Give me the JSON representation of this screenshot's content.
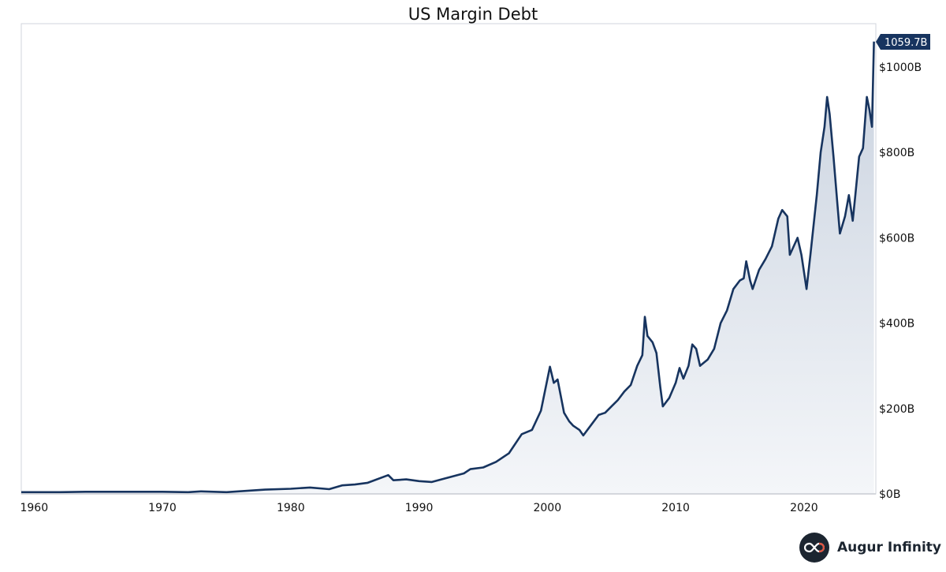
{
  "chart_data": {
    "type": "area",
    "title": "US Margin Debt",
    "xlabel": "",
    "ylabel": "",
    "x_ticks": [
      "1960",
      "1970",
      "1980",
      "1990",
      "2000",
      "2010",
      "2020"
    ],
    "y_ticks": [
      "$0B",
      "$200B",
      "$400B",
      "$600B",
      "$800B",
      "$1000B"
    ],
    "y_tick_values": [
      0,
      200,
      400,
      600,
      800,
      1000
    ],
    "xlim": [
      1959,
      2025.6
    ],
    "ylim": [
      0,
      1100
    ],
    "grid": false,
    "legend": "none",
    "last_value_label": "1059.7B",
    "series": [
      {
        "values_unit": "billions USD",
        "points": [
          [
            1959.0,
            4
          ],
          [
            1962.0,
            4
          ],
          [
            1964.0,
            5
          ],
          [
            1968.0,
            5
          ],
          [
            1970.0,
            5
          ],
          [
            1972.0,
            4
          ],
          [
            1973.0,
            6
          ],
          [
            1974.0,
            5
          ],
          [
            1975.0,
            4
          ],
          [
            1978.0,
            10
          ],
          [
            1980.0,
            12
          ],
          [
            1981.5,
            15
          ],
          [
            1983.0,
            11
          ],
          [
            1984.0,
            20
          ],
          [
            1985.0,
            22
          ],
          [
            1986.0,
            26
          ],
          [
            1987.6,
            44
          ],
          [
            1988.0,
            32
          ],
          [
            1989.0,
            34
          ],
          [
            1990.0,
            30
          ],
          [
            1991.0,
            28
          ],
          [
            1992.0,
            36
          ],
          [
            1993.5,
            48
          ],
          [
            1994.0,
            58
          ],
          [
            1995.0,
            62
          ],
          [
            1996.0,
            75
          ],
          [
            1997.0,
            95
          ],
          [
            1998.0,
            140
          ],
          [
            1998.8,
            150
          ],
          [
            1999.5,
            195
          ],
          [
            2000.2,
            298
          ],
          [
            2000.5,
            260
          ],
          [
            2000.8,
            268
          ],
          [
            2001.3,
            190
          ],
          [
            2001.7,
            170
          ],
          [
            2002.0,
            160
          ],
          [
            2002.5,
            150
          ],
          [
            2002.8,
            137
          ],
          [
            2003.5,
            165
          ],
          [
            2004.0,
            185
          ],
          [
            2004.5,
            190
          ],
          [
            2005.0,
            205
          ],
          [
            2005.5,
            220
          ],
          [
            2006.0,
            240
          ],
          [
            2006.5,
            255
          ],
          [
            2007.0,
            300
          ],
          [
            2007.4,
            325
          ],
          [
            2007.6,
            415
          ],
          [
            2007.8,
            370
          ],
          [
            2008.2,
            355
          ],
          [
            2008.5,
            330
          ],
          [
            2008.8,
            250
          ],
          [
            2009.0,
            205
          ],
          [
            2009.5,
            225
          ],
          [
            2010.0,
            260
          ],
          [
            2010.3,
            295
          ],
          [
            2010.6,
            270
          ],
          [
            2011.0,
            300
          ],
          [
            2011.3,
            350
          ],
          [
            2011.6,
            340
          ],
          [
            2011.9,
            300
          ],
          [
            2012.5,
            315
          ],
          [
            2013.0,
            340
          ],
          [
            2013.5,
            400
          ],
          [
            2014.0,
            430
          ],
          [
            2014.5,
            480
          ],
          [
            2015.0,
            500
          ],
          [
            2015.3,
            505
          ],
          [
            2015.5,
            545
          ],
          [
            2015.8,
            500
          ],
          [
            2016.0,
            480
          ],
          [
            2016.5,
            525
          ],
          [
            2017.0,
            550
          ],
          [
            2017.5,
            580
          ],
          [
            2018.0,
            645
          ],
          [
            2018.3,
            665
          ],
          [
            2018.7,
            650
          ],
          [
            2018.9,
            560
          ],
          [
            2019.5,
            600
          ],
          [
            2019.8,
            560
          ],
          [
            2020.2,
            480
          ],
          [
            2020.5,
            560
          ],
          [
            2021.0,
            700
          ],
          [
            2021.3,
            800
          ],
          [
            2021.6,
            860
          ],
          [
            2021.8,
            930
          ],
          [
            2022.0,
            890
          ],
          [
            2022.3,
            790
          ],
          [
            2022.6,
            680
          ],
          [
            2022.8,
            610
          ],
          [
            2023.2,
            650
          ],
          [
            2023.5,
            700
          ],
          [
            2023.8,
            640
          ],
          [
            2024.0,
            700
          ],
          [
            2024.3,
            790
          ],
          [
            2024.6,
            810
          ],
          [
            2024.9,
            930
          ],
          [
            2025.1,
            900
          ],
          [
            2025.3,
            860
          ],
          [
            2025.45,
            1059.7
          ]
        ]
      }
    ],
    "colors": {
      "line": "#17345f",
      "area_top": "#c9d2df",
      "area_bottom": "#f4f6f9",
      "axis": "#c8ccd2",
      "label_bg": "#17345f"
    }
  },
  "brand": {
    "name": "Augur Infinity",
    "logo_icon": "infinity-icon"
  }
}
